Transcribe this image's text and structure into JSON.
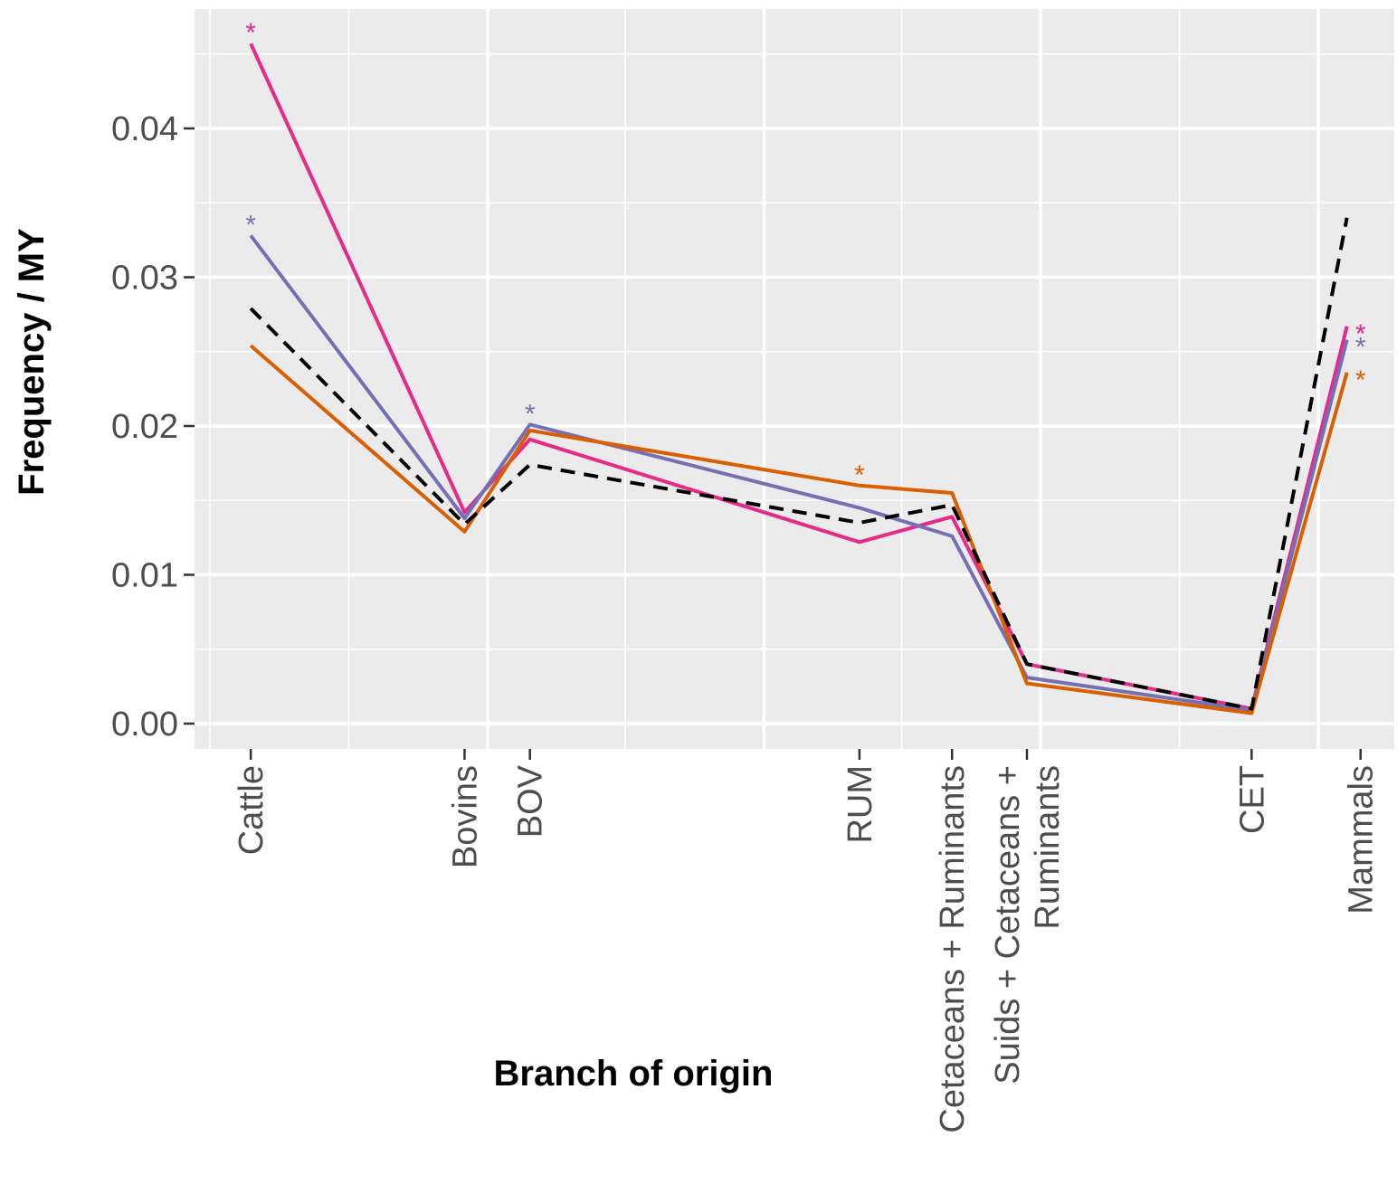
{
  "chart_data": {
    "type": "line",
    "xlabel": "Branch of origin",
    "ylabel": "Frequency / MY",
    "ylim": [
      -0.0016,
      0.048
    ],
    "yticks": [
      "0.00",
      "0.01",
      "0.02",
      "0.03",
      "0.04"
    ],
    "ytick_values": [
      0,
      0.01,
      0.02,
      0.03,
      0.04
    ],
    "categories": [
      {
        "label": "Cattle",
        "lines": [
          "Cattle"
        ],
        "x": 0.3
      },
      {
        "label": "Bovins",
        "lines": [
          "Bovins"
        ],
        "x": 1.87
      },
      {
        "label": "BOV",
        "lines": [
          "BOV"
        ],
        "x": 2.35
      },
      {
        "label": "RUM",
        "lines": [
          "RUM"
        ],
        "x": 4.77
      },
      {
        "label": "Cetaceans + Ruminants",
        "lines": [
          "Cetaceans + Ruminants"
        ],
        "x": 5.45
      },
      {
        "label": "Suids + Cetaceans + Ruminants",
        "lines": [
          "Suids + Cetaceans +",
          "Ruminants"
        ],
        "x": 6.0
      },
      {
        "label": "CET",
        "lines": [
          "CET"
        ],
        "x": 7.65
      },
      {
        "label": "Mammals",
        "lines": [
          "Mammals"
        ],
        "x": 8.45
      }
    ],
    "xlim": [
      0,
      8.6
    ],
    "grid": true,
    "background": "#ebebeb",
    "series": [
      {
        "color": "#e7298a",
        "dashed": false,
        "x": [
          0.3,
          1.87,
          2.35,
          4.77,
          5.45,
          6.0,
          7.65,
          8.35
        ],
        "values": [
          0.0457,
          0.0142,
          0.0191,
          0.0122,
          0.0139,
          0.004,
          0.001,
          0.0267
        ],
        "sig": [
          true,
          false,
          false,
          false,
          false,
          false,
          false,
          true
        ]
      },
      {
        "color": "#7570b3",
        "dashed": false,
        "x": [
          0.3,
          1.87,
          2.35,
          4.77,
          5.45,
          6.0,
          7.65,
          8.35
        ],
        "values": [
          0.0328,
          0.0138,
          0.0201,
          0.0145,
          0.0126,
          0.0031,
          0.0009,
          0.0258
        ],
        "sig": [
          true,
          false,
          true,
          false,
          false,
          false,
          false,
          true
        ]
      },
      {
        "color": "#d95f02",
        "dashed": false,
        "x": [
          0.3,
          1.87,
          2.35,
          4.77,
          5.45,
          6.0,
          7.65,
          8.35
        ],
        "values": [
          0.0254,
          0.0129,
          0.0197,
          0.016,
          0.0155,
          0.0027,
          0.0007,
          0.0236
        ],
        "sig": [
          false,
          false,
          false,
          true,
          false,
          false,
          false,
          true
        ]
      },
      {
        "color": "#000000",
        "dashed": true,
        "x": [
          0.3,
          1.87,
          2.35,
          4.77,
          5.45,
          6.0,
          7.65,
          8.35
        ],
        "values": [
          0.0279,
          0.0134,
          0.0174,
          0.0135,
          0.0147,
          0.004,
          0.001,
          0.034
        ],
        "sig": [
          false,
          false,
          false,
          false,
          false,
          false,
          false,
          false
        ]
      }
    ]
  }
}
